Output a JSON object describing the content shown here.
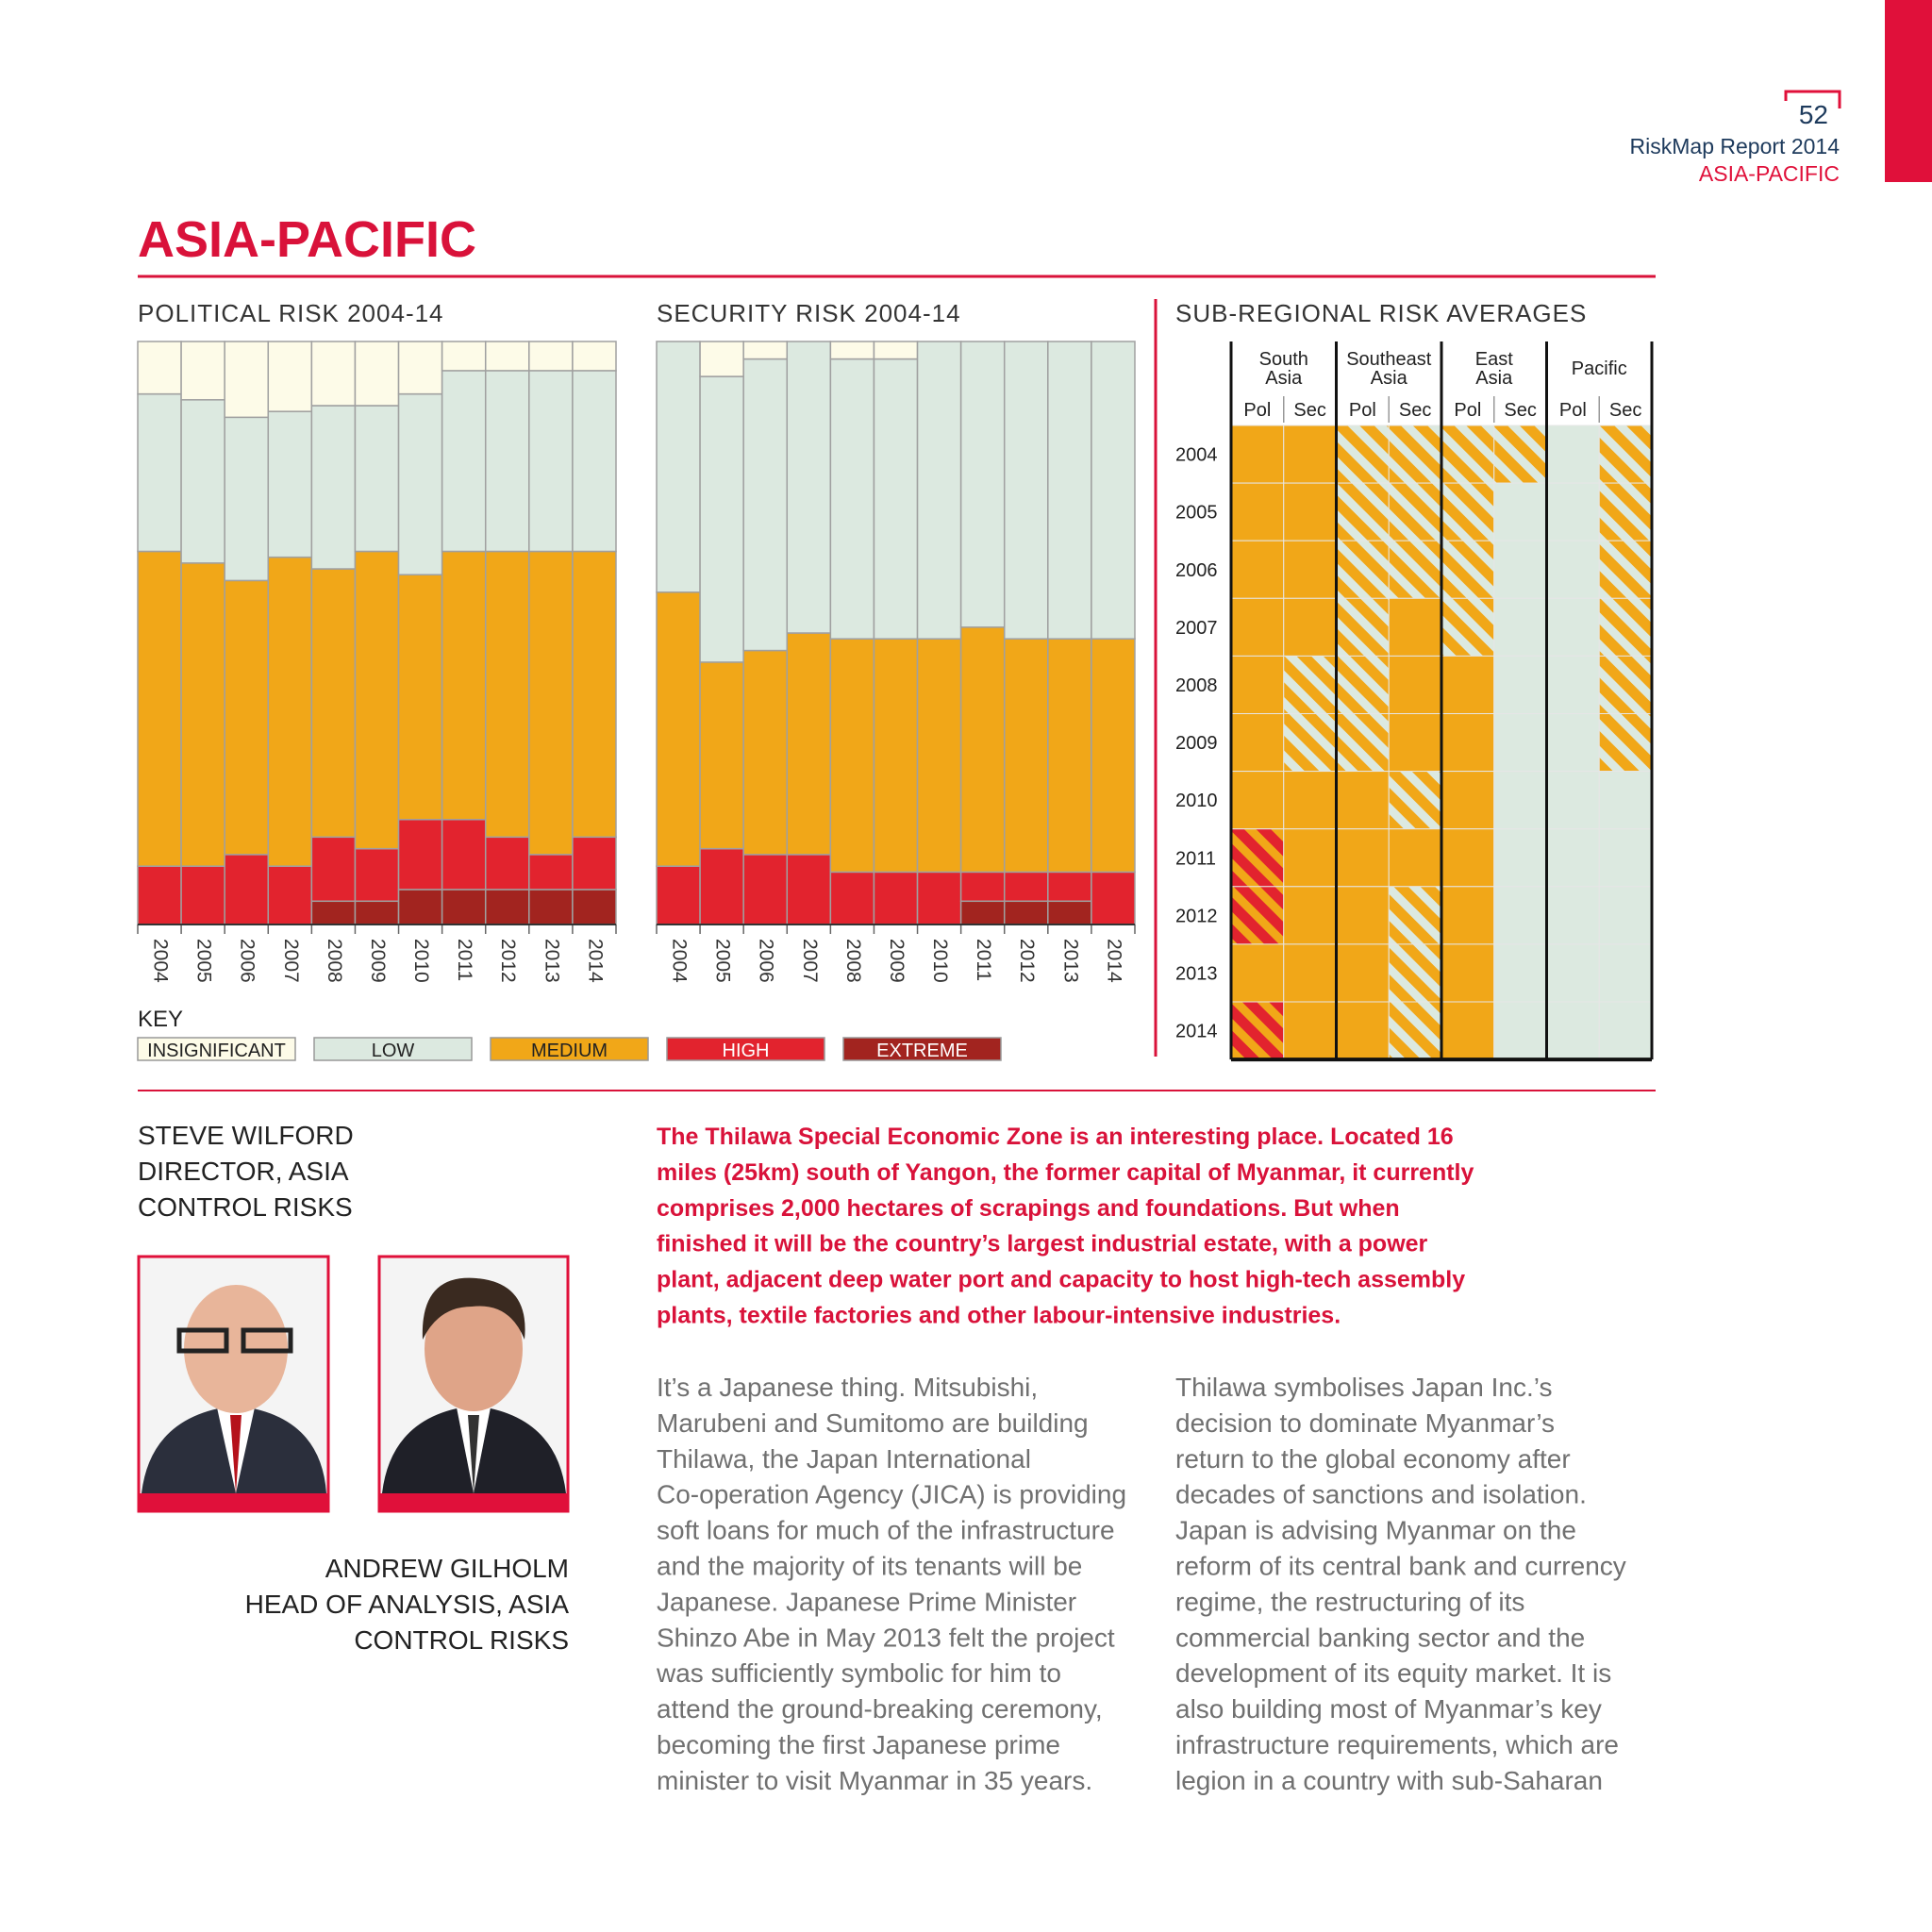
{
  "header": {
    "page_number": "52",
    "report": "RiskMap Report 2014",
    "section": "ASIA-PACIFIC"
  },
  "title": "ASIA-PACIFIC",
  "key": {
    "title": "KEY",
    "series": [
      {
        "name": "INSIGNIFICANT",
        "color": "#fdfbe8"
      },
      {
        "name": "LOW",
        "color": "#dce9e0"
      },
      {
        "name": "MEDIUM",
        "color": "#f1a718"
      },
      {
        "name": "HIGH",
        "color": "#e2232e"
      },
      {
        "name": "EXTREME",
        "color": "#a2241f"
      }
    ]
  },
  "chart_data": [
    {
      "type": "bar",
      "title": "POLITICAL RISK 2004-14",
      "categories": [
        "2004",
        "2005",
        "2006",
        "2007",
        "2008",
        "2009",
        "2010",
        "2011",
        "2012",
        "2013",
        "2014"
      ],
      "ylim": [
        0,
        100
      ],
      "series": [
        {
          "values": [
            9,
            10,
            13,
            12,
            11,
            11,
            9,
            5,
            5,
            5,
            5
          ]
        },
        {
          "values": [
            27,
            28,
            28,
            25,
            28,
            25,
            31,
            31,
            31,
            31,
            31
          ]
        },
        {
          "values": [
            54,
            52,
            47,
            53,
            46,
            51,
            42,
            46,
            49,
            52,
            49
          ]
        },
        {
          "values": [
            10,
            10,
            12,
            10,
            11,
            9,
            12,
            12,
            9,
            6,
            9
          ]
        },
        {
          "values": [
            0,
            0,
            0,
            0,
            4,
            4,
            6,
            6,
            6,
            6,
            6
          ]
        }
      ]
    },
    {
      "type": "bar",
      "title": "SECURITY RISK 2004-14",
      "categories": [
        "2004",
        "2005",
        "2006",
        "2007",
        "2008",
        "2009",
        "2010",
        "2011",
        "2012",
        "2013",
        "2014"
      ],
      "ylim": [
        0,
        100
      ],
      "series": [
        {
          "values": [
            0,
            6,
            3,
            0,
            3,
            3,
            0,
            0,
            0,
            0,
            0
          ]
        },
        {
          "values": [
            43,
            49,
            50,
            50,
            48,
            48,
            51,
            49,
            51,
            51,
            51
          ]
        },
        {
          "values": [
            47,
            32,
            35,
            38,
            40,
            40,
            40,
            42,
            40,
            40,
            40
          ]
        },
        {
          "values": [
            10,
            13,
            12,
            12,
            9,
            9,
            9,
            5,
            5,
            5,
            9
          ]
        },
        {
          "values": [
            0,
            0,
            0,
            0,
            0,
            0,
            0,
            4,
            4,
            4,
            0
          ]
        }
      ]
    }
  ],
  "sub_regional": {
    "title": "SUB-REGIONAL RISK AVERAGES",
    "regions": [
      {
        "name": [
          "South",
          "Asia"
        ],
        "columns": [
          "Pol",
          "Sec"
        ]
      },
      {
        "name": [
          "Southeast",
          "Asia"
        ],
        "columns": [
          "Pol",
          "Sec"
        ]
      },
      {
        "name": [
          "East",
          "Asia"
        ],
        "columns": [
          "Pol",
          "Sec"
        ]
      },
      {
        "name": [
          "Pacific"
        ],
        "columns": [
          "Pol",
          "Sec"
        ]
      }
    ],
    "rows": [
      {
        "year": "2004",
        "cells": [
          [
            2
          ],
          [
            2
          ],
          [
            2,
            1
          ],
          [
            2,
            1
          ],
          [
            2,
            1
          ],
          [
            2,
            1
          ],
          [
            1
          ],
          [
            2,
            1
          ]
        ]
      },
      {
        "year": "2005",
        "cells": [
          [
            2
          ],
          [
            2
          ],
          [
            2,
            1
          ],
          [
            2,
            1
          ],
          [
            2,
            1
          ],
          [
            1
          ],
          [
            1
          ],
          [
            2,
            1
          ]
        ]
      },
      {
        "year": "2006",
        "cells": [
          [
            2
          ],
          [
            2
          ],
          [
            2,
            1
          ],
          [
            2,
            1
          ],
          [
            2,
            1
          ],
          [
            1
          ],
          [
            1
          ],
          [
            2,
            1
          ]
        ]
      },
      {
        "year": "2007",
        "cells": [
          [
            2
          ],
          [
            2
          ],
          [
            2,
            1
          ],
          [
            2
          ],
          [
            2,
            1
          ],
          [
            1
          ],
          [
            1
          ],
          [
            2,
            1
          ]
        ]
      },
      {
        "year": "2008",
        "cells": [
          [
            2
          ],
          [
            2,
            1
          ],
          [
            2,
            1
          ],
          [
            2
          ],
          [
            2
          ],
          [
            1
          ],
          [
            1
          ],
          [
            2,
            1
          ]
        ]
      },
      {
        "year": "2009",
        "cells": [
          [
            2
          ],
          [
            2,
            1
          ],
          [
            2,
            1
          ],
          [
            2
          ],
          [
            2
          ],
          [
            1
          ],
          [
            1
          ],
          [
            2,
            1
          ]
        ]
      },
      {
        "year": "2010",
        "cells": [
          [
            2
          ],
          [
            2
          ],
          [
            2
          ],
          [
            2,
            1
          ],
          [
            2
          ],
          [
            1
          ],
          [
            1
          ],
          [
            1
          ]
        ]
      },
      {
        "year": "2011",
        "cells": [
          [
            3,
            2
          ],
          [
            2
          ],
          [
            2
          ],
          [
            2
          ],
          [
            2
          ],
          [
            1
          ],
          [
            1
          ],
          [
            1
          ]
        ]
      },
      {
        "year": "2012",
        "cells": [
          [
            3,
            2
          ],
          [
            2
          ],
          [
            2
          ],
          [
            2,
            1
          ],
          [
            2
          ],
          [
            1
          ],
          [
            1
          ],
          [
            1
          ]
        ]
      },
      {
        "year": "2013",
        "cells": [
          [
            2
          ],
          [
            2
          ],
          [
            2
          ],
          [
            2,
            1
          ],
          [
            2
          ],
          [
            1
          ],
          [
            1
          ],
          [
            1
          ]
        ]
      },
      {
        "year": "2014",
        "cells": [
          [
            3,
            2
          ],
          [
            2
          ],
          [
            2
          ],
          [
            2,
            1
          ],
          [
            2
          ],
          [
            1
          ],
          [
            1
          ],
          [
            1
          ]
        ]
      }
    ]
  },
  "people": [
    {
      "lines": [
        "STEVE WILFORD",
        "DIRECTOR, ASIA",
        "CONTROL RISKS"
      ]
    },
    {
      "lines": [
        "ANDREW GILHOLM",
        "HEAD OF ANALYSIS, ASIA",
        "CONTROL RISKS"
      ]
    }
  ],
  "lead": [
    "The Thilawa Special Economic Zone is an interesting place. Located 16",
    "miles (25km) south of Yangon, the former capital of Myanmar, it currently",
    "comprises 2,000 hectares of scrapings and foundations. But when",
    "finished it will be the country’s largest industrial estate, with a power",
    "plant, adjacent deep water port and capacity to host high-tech assembly",
    "plants, textile factories and other labour-intensive industries."
  ],
  "body": [
    [
      "It’s a Japanese thing. Mitsubishi,",
      "Marubeni and Sumitomo are building",
      "Thilawa, the Japan International",
      "Co-operation Agency (JICA) is providing",
      "soft loans for much of the infrastructure",
      "and the majority of its tenants will be",
      "Japanese. Japanese Prime Minister",
      "Shinzo Abe in May 2013 felt the project",
      "was sufficiently symbolic for him to",
      "attend the ground-breaking ceremony,",
      "becoming the first Japanese prime",
      "minister to visit Myanmar in 35 years."
    ],
    [
      "Thilawa symbolises Japan Inc.’s",
      "decision to dominate Myanmar’s",
      "return to the global economy after",
      "decades of sanctions and isolation.",
      "Japan is advising Myanmar on the",
      "reform of its central bank and currency",
      "regime, the restructuring of its",
      "commercial banking sector and the",
      "development of its equity market. It is",
      "also building most of Myanmar’s key",
      "infrastructure requirements, which are",
      "legion in a country with sub-Saharan"
    ]
  ]
}
